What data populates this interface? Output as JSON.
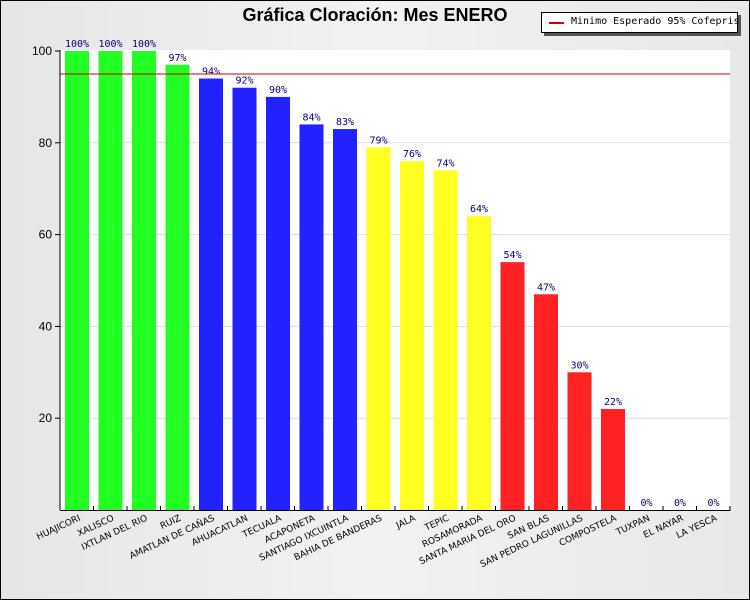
{
  "chart_data": {
    "type": "bar",
    "title": "Gráfica Cloración: Mes ENERO",
    "xlabel": "",
    "ylabel": "",
    "ylim": [
      0,
      100
    ],
    "yticks": [
      20,
      40,
      60,
      80,
      100
    ],
    "grid": true,
    "legend_position": "top-right",
    "legend": [
      {
        "label": "Minimo Esperado 95% Cofepris",
        "color": "#d00000"
      }
    ],
    "reference_line": {
      "value": 95,
      "color": "#d00000"
    },
    "categories": [
      "HUAJICORI",
      "XALISCO",
      "IXTLAN DEL RIO",
      "RUIZ",
      "AMATLAN DE CAÑAS",
      "AHUACATLAN",
      "TECUALA",
      "ACAPONETA",
      "SANTIAGO IXCUINTLA",
      "BAHIA DE BANDERAS",
      "JALA",
      "TEPIC",
      "ROSAMORADA",
      "SANTA MARIA DEL ORO",
      "SAN BLAS",
      "SAN PEDRO LAGUNILLAS",
      "COMPOSTELA",
      "TUXPAN",
      "EL NAYAR",
      "LA YESCA"
    ],
    "values": [
      100,
      100,
      100,
      97,
      94,
      92,
      90,
      84,
      83,
      79,
      76,
      74,
      64,
      54,
      47,
      30,
      22,
      0,
      0,
      0
    ],
    "labels": [
      "100%",
      "100%",
      "100%",
      "97%",
      "94%",
      "92%",
      "90%",
      "84%",
      "83%",
      "79%",
      "76%",
      "74%",
      "64%",
      "54%",
      "47%",
      "30%",
      "22%",
      "0%",
      "0%",
      "0%"
    ],
    "colors": [
      "#22ff22",
      "#22ff22",
      "#22ff22",
      "#22ff22",
      "#2222ff",
      "#2222ff",
      "#2222ff",
      "#2222ff",
      "#2222ff",
      "#ffff22",
      "#ffff22",
      "#ffff22",
      "#ffff22",
      "#ff2222",
      "#ff2222",
      "#ff2222",
      "#ff2222",
      "#ff2222",
      "#ff2222",
      "#ff2222"
    ],
    "label_color": "#000080"
  }
}
